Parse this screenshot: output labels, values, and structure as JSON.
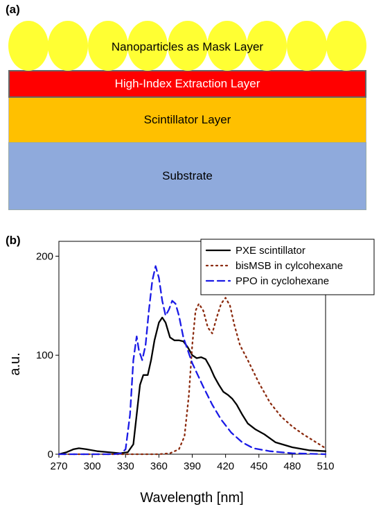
{
  "panel_a": {
    "label": "(a)",
    "layers": {
      "mask": "Nanoparticles as Mask Layer",
      "extraction": "High-Index Extraction Layer",
      "scintillator": "Scintillator Layer",
      "substrate": "Substrate"
    },
    "nanoparticle_count": 9,
    "colors": {
      "nanoparticle": "#ffff33",
      "extraction": "#ff0000",
      "scintillator": "#ffc000",
      "substrate": "#8faadc"
    }
  },
  "panel_b": {
    "label": "(b)"
  },
  "chart_data": {
    "type": "line",
    "xlabel": "Wavelength [nm]",
    "ylabel": "a.u.",
    "xlim": [
      270,
      510
    ],
    "ylim": [
      0,
      215
    ],
    "xticks": [
      270,
      300,
      330,
      360,
      390,
      420,
      450,
      480,
      510
    ],
    "yticks": [
      0,
      100,
      200
    ],
    "legend": "top-right",
    "series": [
      {
        "name": "PXE scintillator",
        "color": "#000000",
        "style": "solid",
        "points": [
          [
            270,
            0
          ],
          [
            277,
            2
          ],
          [
            283,
            5
          ],
          [
            288,
            6
          ],
          [
            295,
            5
          ],
          [
            305,
            3
          ],
          [
            315,
            2
          ],
          [
            325,
            1
          ],
          [
            332,
            2
          ],
          [
            337,
            10
          ],
          [
            340,
            40
          ],
          [
            343,
            70
          ],
          [
            346,
            80
          ],
          [
            350,
            80
          ],
          [
            353,
            95
          ],
          [
            356,
            115
          ],
          [
            360,
            133
          ],
          [
            363,
            138
          ],
          [
            366,
            133
          ],
          [
            370,
            118
          ],
          [
            374,
            115
          ],
          [
            378,
            115
          ],
          [
            382,
            114
          ],
          [
            386,
            108
          ],
          [
            390,
            100
          ],
          [
            394,
            97
          ],
          [
            398,
            98
          ],
          [
            402,
            96
          ],
          [
            406,
            88
          ],
          [
            410,
            78
          ],
          [
            414,
            70
          ],
          [
            418,
            63
          ],
          [
            422,
            60
          ],
          [
            426,
            56
          ],
          [
            430,
            50
          ],
          [
            435,
            40
          ],
          [
            440,
            31
          ],
          [
            447,
            25
          ],
          [
            455,
            20
          ],
          [
            465,
            12
          ],
          [
            480,
            7
          ],
          [
            495,
            4
          ],
          [
            510,
            3
          ]
        ]
      },
      {
        "name": "bisMSB in cylcohexane",
        "color": "#8b2a0e",
        "style": "dotted",
        "points": [
          [
            270,
            0
          ],
          [
            360,
            0
          ],
          [
            370,
            1
          ],
          [
            378,
            5
          ],
          [
            383,
            18
          ],
          [
            387,
            60
          ],
          [
            390,
            110
          ],
          [
            393,
            145
          ],
          [
            396,
            152
          ],
          [
            400,
            145
          ],
          [
            404,
            128
          ],
          [
            408,
            122
          ],
          [
            412,
            138
          ],
          [
            416,
            152
          ],
          [
            420,
            158
          ],
          [
            424,
            150
          ],
          [
            428,
            130
          ],
          [
            433,
            110
          ],
          [
            440,
            95
          ],
          [
            450,
            72
          ],
          [
            460,
            52
          ],
          [
            470,
            38
          ],
          [
            480,
            28
          ],
          [
            490,
            20
          ],
          [
            500,
            13
          ],
          [
            510,
            6
          ]
        ]
      },
      {
        "name": "PPO in cyclohexane",
        "color": "#1a1ae6",
        "style": "dashed",
        "points": [
          [
            270,
            0
          ],
          [
            320,
            0
          ],
          [
            326,
            1
          ],
          [
            330,
            5
          ],
          [
            334,
            40
          ],
          [
            337,
            95
          ],
          [
            340,
            119
          ],
          [
            342,
            105
          ],
          [
            345,
            95
          ],
          [
            348,
            110
          ],
          [
            351,
            145
          ],
          [
            354,
            175
          ],
          [
            357,
            190
          ],
          [
            360,
            178
          ],
          [
            363,
            155
          ],
          [
            366,
            140
          ],
          [
            369,
            146
          ],
          [
            372,
            155
          ],
          [
            375,
            152
          ],
          [
            378,
            140
          ],
          [
            382,
            118
          ],
          [
            386,
            105
          ],
          [
            390,
            92
          ],
          [
            395,
            80
          ],
          [
            400,
            68
          ],
          [
            408,
            50
          ],
          [
            416,
            35
          ],
          [
            425,
            22
          ],
          [
            435,
            12
          ],
          [
            445,
            6
          ],
          [
            460,
            3
          ],
          [
            480,
            1
          ],
          [
            510,
            0
          ]
        ]
      }
    ]
  }
}
